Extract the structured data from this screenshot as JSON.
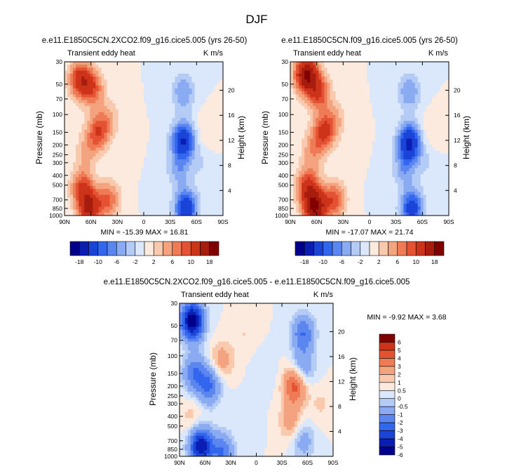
{
  "figure": {
    "title": "DJF"
  },
  "colors": {
    "cb_top": [
      "#00008b",
      "#0a1eb4",
      "#1a44d8",
      "#3366ee",
      "#5b86f0",
      "#8aaaf2",
      "#b4cbf6",
      "#dbe8fb",
      "#fdeade",
      "#f9c9ae",
      "#f4a37f",
      "#ee7b55",
      "#e55233",
      "#cc3319",
      "#a81c0e",
      "#800000"
    ],
    "cb_diff": [
      "#00008b",
      "#0a1eb4",
      "#1a44d8",
      "#3366ee",
      "#5b86f0",
      "#8aaaf2",
      "#b4cbf6",
      "#dbe8fb",
      "#fdeade",
      "#f9c9ae",
      "#f4a37f",
      "#ee7b55",
      "#e55233",
      "#cc3319",
      "#800000"
    ],
    "frame": "#000000"
  },
  "chart_data": [
    {
      "type": "heatmap",
      "title": "e.e11.E1850C5CN.2XCO2.f09_g16.cice5.005 (yrs 26-50)",
      "left_label": "Transient eddy heat",
      "right_label": "K m/s",
      "xlabel": "",
      "ylabel": "Pressure (mb)",
      "ylabel_right": "Height (km)",
      "x_ticks": [
        "90N",
        "60N",
        "30N",
        "0",
        "30S",
        "60S",
        "90S"
      ],
      "y_ticks": [
        "30",
        "50",
        "70",
        "100",
        "150",
        "200",
        "250",
        "300",
        "400",
        "500",
        "700",
        "850",
        "1000"
      ],
      "y_right_ticks": [
        "20",
        "16",
        "12",
        "8",
        "4"
      ],
      "stats": "MIN = -15.39   MAX = 16.81",
      "colorbar_labels": [
        "-18",
        "-10",
        "-6",
        "-2",
        "2",
        "6",
        "10",
        "18"
      ],
      "features": [
        {
          "lat": 72,
          "p": 45,
          "v": 12
        },
        {
          "lat": 58,
          "p": 55,
          "v": 8
        },
        {
          "lat": 52,
          "p": 150,
          "v": 9
        },
        {
          "lat": 65,
          "p": 230,
          "v": 4
        },
        {
          "lat": 70,
          "p": 520,
          "v": 9
        },
        {
          "lat": 62,
          "p": 850,
          "v": 14
        },
        {
          "lat": 40,
          "p": 700,
          "v": 8
        },
        {
          "lat": 40,
          "p": 110,
          "v": 4
        },
        {
          "lat": 15,
          "p": 300,
          "v": 1
        },
        {
          "lat": -10,
          "p": 400,
          "v": -0.8
        },
        {
          "lat": -45,
          "p": 180,
          "v": -14
        },
        {
          "lat": -45,
          "p": 60,
          "v": -6
        },
        {
          "lat": -40,
          "p": 350,
          "v": -5
        },
        {
          "lat": -48,
          "p": 850,
          "v": -13
        },
        {
          "lat": -70,
          "p": 150,
          "v": 2
        },
        {
          "lat": -65,
          "p": 300,
          "v": -2
        }
      ]
    },
    {
      "type": "heatmap",
      "title": "e.e11.E1850C5CN.f09_g16.cice5.005 (yrs 26-50)",
      "left_label": "Transient eddy heat",
      "right_label": "K m/s",
      "xlabel": "",
      "ylabel": "Pressure (mb)",
      "ylabel_right": "Height (km)",
      "x_ticks": [
        "90N",
        "60N",
        "30N",
        "0",
        "30S",
        "60S",
        "90S"
      ],
      "y_ticks": [
        "30",
        "50",
        "70",
        "100",
        "150",
        "200",
        "250",
        "300",
        "400",
        "500",
        "700",
        "850",
        "1000"
      ],
      "y_right_ticks": [
        "20",
        "16",
        "12",
        "8",
        "4"
      ],
      "stats": "MIN = -17.07   MAX = 21.74",
      "colorbar_labels": [
        "-18",
        "-10",
        "-6",
        "-2",
        "2",
        "6",
        "10",
        "18"
      ],
      "features": [
        {
          "lat": 72,
          "p": 40,
          "v": 18
        },
        {
          "lat": 58,
          "p": 60,
          "v": 10
        },
        {
          "lat": 52,
          "p": 150,
          "v": 10
        },
        {
          "lat": 65,
          "p": 230,
          "v": 5
        },
        {
          "lat": 70,
          "p": 520,
          "v": 11
        },
        {
          "lat": 62,
          "p": 850,
          "v": 17
        },
        {
          "lat": 40,
          "p": 700,
          "v": 9
        },
        {
          "lat": 40,
          "p": 110,
          "v": 4
        },
        {
          "lat": 15,
          "p": 300,
          "v": 1
        },
        {
          "lat": -10,
          "p": 400,
          "v": -0.8
        },
        {
          "lat": -45,
          "p": 190,
          "v": -15
        },
        {
          "lat": -45,
          "p": 60,
          "v": -6
        },
        {
          "lat": -40,
          "p": 350,
          "v": -5
        },
        {
          "lat": -48,
          "p": 850,
          "v": -12
        },
        {
          "lat": -70,
          "p": 150,
          "v": 2
        },
        {
          "lat": -65,
          "p": 300,
          "v": -2
        }
      ]
    },
    {
      "type": "heatmap",
      "title": "e.e11.E1850C5CN.2XCO2.f09_g16.cice5.005 - e.e11.E1850C5CN.f09_g16.cice5.005",
      "left_label": "Transient eddy heat",
      "right_label": "K m/s",
      "xlabel": "",
      "ylabel": "Pressure (mb)",
      "ylabel_right": "Height (km)",
      "x_ticks": [
        "90N",
        "60N",
        "30N",
        "0",
        "30S",
        "60S",
        "90S"
      ],
      "y_ticks": [
        "30",
        "50",
        "70",
        "100",
        "150",
        "200",
        "250",
        "300",
        "400",
        "500",
        "700",
        "850",
        "1000"
      ],
      "y_right_ticks": [
        "20",
        "16",
        "12",
        "8",
        "4"
      ],
      "stats": "MIN =  -9.92   MAX =   3.68",
      "colorbar_labels": [
        "6",
        "5",
        "4",
        "3",
        "2",
        "1",
        "0.5",
        "0",
        "-0.5",
        "-1",
        "-2",
        "-3",
        "-4",
        "-5",
        "-6"
      ],
      "features": [
        {
          "lat": 75,
          "p": 45,
          "v": -7
        },
        {
          "lat": 72,
          "p": 150,
          "v": -3
        },
        {
          "lat": 55,
          "p": 200,
          "v": -3
        },
        {
          "lat": 65,
          "p": 800,
          "v": -6
        },
        {
          "lat": 40,
          "p": 900,
          "v": -3
        },
        {
          "lat": 75,
          "p": 400,
          "v": 0.8
        },
        {
          "lat": 40,
          "p": 110,
          "v": 1.5
        },
        {
          "lat": 15,
          "p": 60,
          "v": 0.5
        },
        {
          "lat": 10,
          "p": 400,
          "v": -0.4
        },
        {
          "lat": -45,
          "p": 200,
          "v": 3.5
        },
        {
          "lat": -40,
          "p": 450,
          "v": 1.5
        },
        {
          "lat": -55,
          "p": 60,
          "v": -3
        },
        {
          "lat": -55,
          "p": 130,
          "v": -2
        },
        {
          "lat": -55,
          "p": 700,
          "v": -1.5
        },
        {
          "lat": -75,
          "p": 300,
          "v": 0.6
        },
        {
          "lat": -10,
          "p": 150,
          "v": -0.5
        }
      ]
    }
  ]
}
